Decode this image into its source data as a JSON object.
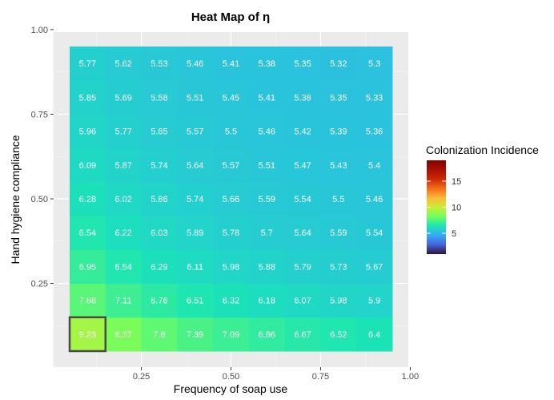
{
  "chart_data": {
    "type": "heatmap",
    "title": "Heat Map of η",
    "xlabel": "Frequency of soap use",
    "ylabel": "Hand hygiene compliance",
    "x": [
      0.1,
      0.2,
      0.3,
      0.4,
      0.5,
      0.6,
      0.7,
      0.8,
      0.9
    ],
    "y": [
      0.1,
      0.2,
      0.3,
      0.4,
      0.5,
      0.6,
      0.7,
      0.8,
      0.9
    ],
    "xlim": [
      0,
      1
    ],
    "ylim": [
      0,
      1
    ],
    "x_ticks": [
      0.25,
      0.5,
      0.75,
      1.0
    ],
    "x_tick_labels": [
      "0.25",
      "0.50",
      "0.75",
      "1.00"
    ],
    "y_ticks": [
      0.25,
      0.5,
      0.75,
      1.0
    ],
    "y_tick_labels": [
      "0.25",
      "0.50",
      "0.75",
      "1.00"
    ],
    "values": [
      [
        9.23,
        8.37,
        7.8,
        7.39,
        7.09,
        6.86,
        6.67,
        6.52,
        6.4
      ],
      [
        7.68,
        7.11,
        6.76,
        6.51,
        6.32,
        6.18,
        6.07,
        5.98,
        5.9
      ],
      [
        6.95,
        6.54,
        6.29,
        6.11,
        5.98,
        5.88,
        5.79,
        5.73,
        5.67
      ],
      [
        6.54,
        6.22,
        6.03,
        5.89,
        5.78,
        5.7,
        5.64,
        5.59,
        5.54
      ],
      [
        6.28,
        6.02,
        5.86,
        5.74,
        5.66,
        5.59,
        5.54,
        5.5,
        5.46
      ],
      [
        6.09,
        5.87,
        5.74,
        5.64,
        5.57,
        5.51,
        5.47,
        5.43,
        5.4
      ],
      [
        5.96,
        5.77,
        5.65,
        5.57,
        5.5,
        5.46,
        5.42,
        5.39,
        5.36
      ],
      [
        5.85,
        5.69,
        5.58,
        5.51,
        5.45,
        5.41,
        5.38,
        5.35,
        5.33
      ],
      [
        5.77,
        5.62,
        5.53,
        5.46,
        5.41,
        5.38,
        5.35,
        5.32,
        5.3
      ]
    ],
    "highlighted_cell": {
      "x": 0.1,
      "y": 0.1
    },
    "color_scale": {
      "name": "turbo",
      "title": "Colonization Incidence",
      "min": 1,
      "max": 19,
      "ticks": [
        5,
        10,
        15
      ],
      "tick_labels": [
        "5",
        "10",
        "15"
      ]
    },
    "grid": true,
    "legend_position": "right"
  }
}
